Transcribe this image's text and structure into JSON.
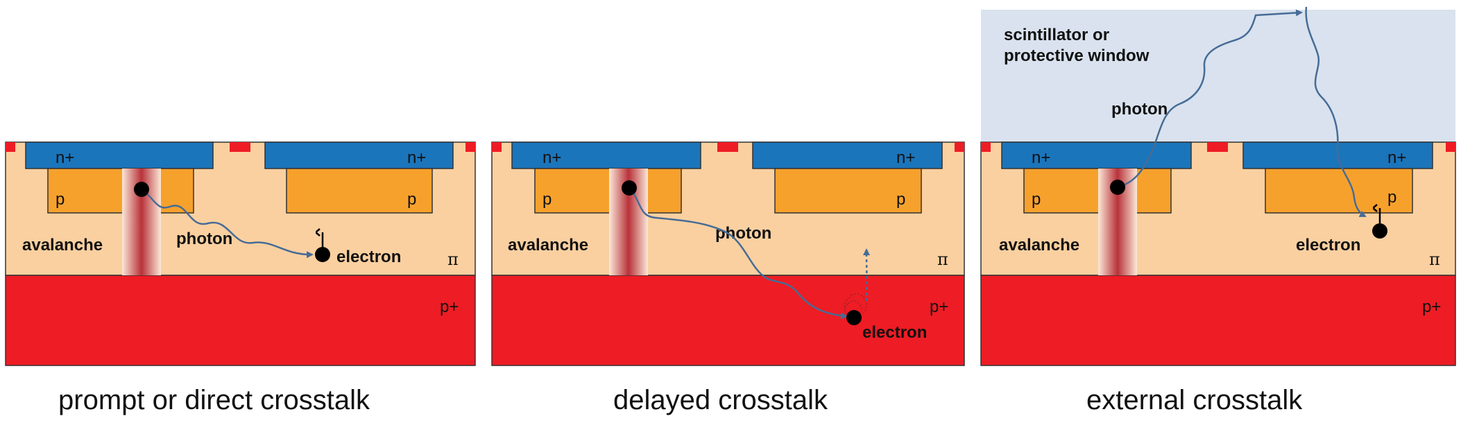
{
  "panels": [
    {
      "caption": "prompt or direct crosstalk",
      "labels": {
        "n_left": "n+",
        "n_right": "n+",
        "p_left": "p",
        "p_right": "p",
        "avalanche": "avalanche",
        "photon": "photon",
        "electron": "electron",
        "pi": "π",
        "p_plus": "p+"
      }
    },
    {
      "caption": "delayed crosstalk",
      "labels": {
        "n_left": "n+",
        "n_right": "n+",
        "p_left": "p",
        "p_right": "p",
        "avalanche": "avalanche",
        "photon": "photon",
        "electron": "electron",
        "pi": "π",
        "p_plus": "p+"
      }
    },
    {
      "caption": "external crosstalk",
      "window_label_line1": "scintillator or",
      "window_label_line2": "protective window",
      "labels": {
        "n_left": "n+",
        "n_right": "n+",
        "p_left": "p",
        "p_right": "p",
        "avalanche": "avalanche",
        "photon": "photon",
        "electron": "electron",
        "pi": "π",
        "p_plus": "p+"
      }
    }
  ],
  "colors": {
    "n_plus": "#1b75bb",
    "p_region": "#f7a12d",
    "pi_region": "#fbd0a0",
    "p_plus": "#ee1c24",
    "window": "#d9e2ee",
    "photon_path": "#466c96",
    "avalanche_core": "#c0392b"
  }
}
